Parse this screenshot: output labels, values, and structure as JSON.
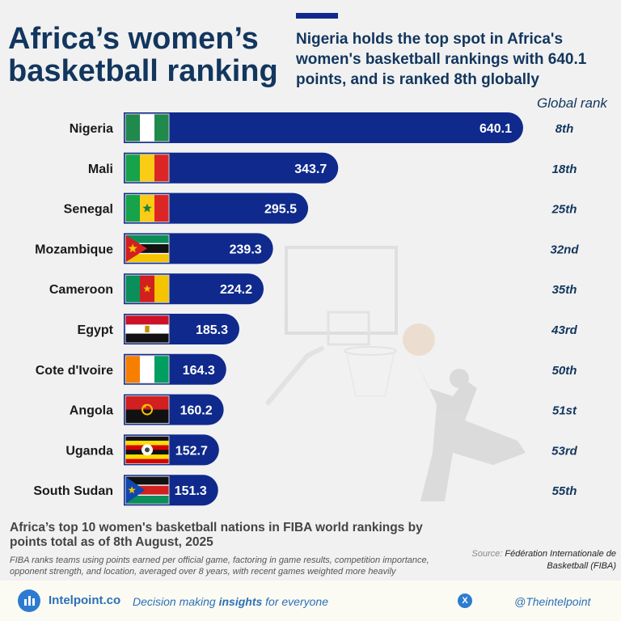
{
  "header": {
    "title": "Africa’s women’s basketball ranking",
    "subtitle": "Nigeria holds the top spot in Africa's women's basketball rankings with 640.1 points, and is ranked 8th globally",
    "global_rank_label": "Global rank"
  },
  "chart_data": {
    "type": "bar",
    "orientation": "horizontal",
    "categories": [
      "Nigeria",
      "Mali",
      "Senegal",
      "Mozambique",
      "Cameroon",
      "Egypt",
      "Cote d'Ivoire",
      "Angola",
      "Uganda",
      "South Sudan"
    ],
    "values": [
      640.1,
      343.7,
      295.5,
      239.3,
      224.2,
      185.3,
      164.3,
      160.2,
      152.7,
      151.3
    ],
    "global_ranks": [
      "8th",
      "18th",
      "25th",
      "32nd",
      "35th",
      "43rd",
      "50th",
      "51st",
      "53rd",
      "55th"
    ],
    "bar_color": "#0f2a8c",
    "rank_color": "#12365e",
    "flags": [
      "nigeria-flag",
      "mali-flag",
      "senegal-flag",
      "mozambique-flag",
      "cameroon-flag",
      "egypt-flag",
      "cote-divoire-flag",
      "angola-flag",
      "uganda-flag",
      "south-sudan-flag"
    ]
  },
  "caption": "Africa’s top 10 women's basketball nations in FIBA world rankings by points total as of 8th August, 2025",
  "note": "FIBA ranks teams using points earned per official game, factoring in game results, competition importance, opponent strength, and location, averaged over 8 years, with recent games weighted more heavily",
  "source": {
    "label": "Source:",
    "text": "Fédération Internationale de Basketball (FIBA)"
  },
  "footer": {
    "brand": "Intelpoint.co",
    "tagline_pre": "Decision making ",
    "tagline_bold": "insights",
    "tagline_post": " for everyone",
    "handle": "@Theintelpoint",
    "icons": [
      "intelpoint-logo-icon",
      "x-icon"
    ]
  }
}
